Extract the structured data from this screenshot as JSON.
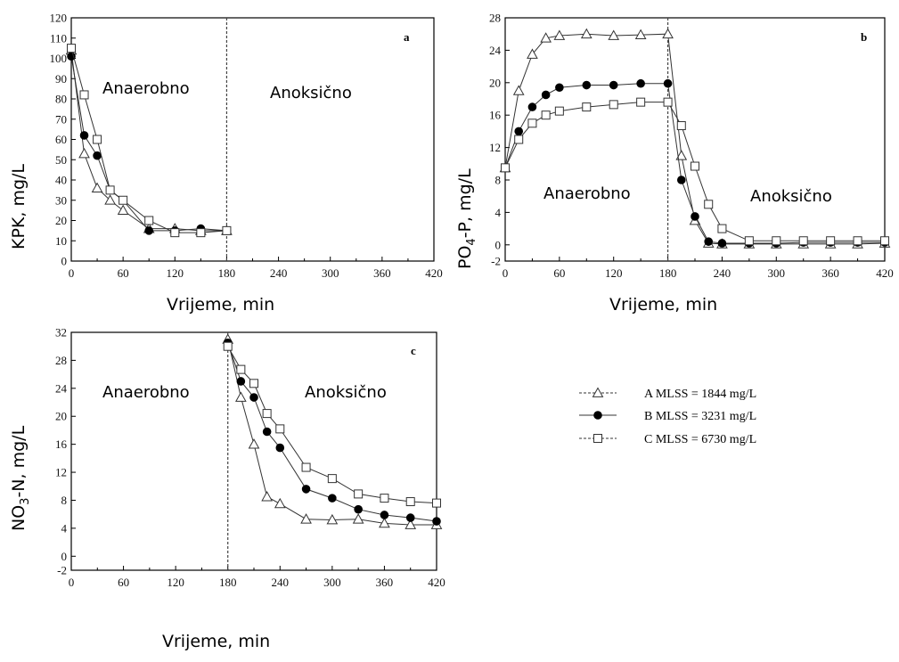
{
  "chart_data": [
    {
      "panel": "a",
      "type": "line",
      "ylabel": "KPK, mg/L",
      "xlabel": "Vrijeme, min",
      "xlim": [
        0,
        420
      ],
      "ylim": [
        0,
        120
      ],
      "xticks": [
        0,
        60,
        120,
        180,
        240,
        300,
        360,
        420
      ],
      "yticks": [
        0,
        10,
        20,
        30,
        40,
        50,
        60,
        70,
        80,
        90,
        100,
        110,
        120
      ],
      "divider_x": 180,
      "regions": [
        "Anaerobno",
        "Anoksično"
      ],
      "series": [
        {
          "key": "A",
          "marker": "triangle",
          "x": [
            0,
            15,
            30,
            45,
            60,
            90,
            120,
            150,
            180
          ],
          "y": [
            104,
            53,
            36,
            30,
            25,
            16,
            16,
            15,
            15
          ]
        },
        {
          "key": "B",
          "marker": "circle",
          "x": [
            0,
            15,
            30,
            45,
            60,
            90,
            120,
            150,
            180
          ],
          "y": [
            101,
            62,
            52,
            35,
            30,
            15,
            15,
            16,
            15
          ]
        },
        {
          "key": "C",
          "marker": "square",
          "x": [
            0,
            15,
            30,
            45,
            60,
            90,
            120,
            150,
            180
          ],
          "y": [
            105,
            82,
            60,
            35,
            30,
            20,
            14,
            14,
            15
          ]
        }
      ]
    },
    {
      "panel": "b",
      "type": "line",
      "ylabel": "PO4-P, mg/L",
      "xlabel": "Vrijeme, min",
      "xlim": [
        0,
        420
      ],
      "ylim": [
        -2,
        28
      ],
      "xticks": [
        0,
        60,
        120,
        180,
        240,
        300,
        360,
        420
      ],
      "yticks": [
        -2,
        0,
        4,
        8,
        12,
        16,
        20,
        24,
        28
      ],
      "divider_x": 180,
      "regions": [
        "Anaerobno",
        "Anoksično"
      ],
      "series": [
        {
          "key": "A",
          "marker": "triangle",
          "x": [
            0,
            15,
            30,
            45,
            60,
            90,
            120,
            150,
            180,
            195,
            210,
            225,
            240,
            270,
            300,
            330,
            360,
            390,
            420
          ],
          "y": [
            9.5,
            19,
            23.5,
            25.5,
            25.8,
            26,
            25.8,
            25.9,
            26,
            11,
            3,
            0.2,
            0.1,
            0.1,
            0.1,
            0.1,
            0.1,
            0.1,
            0.2
          ]
        },
        {
          "key": "B",
          "marker": "circle",
          "x": [
            0,
            15,
            30,
            45,
            60,
            90,
            120,
            150,
            180,
            195,
            210,
            225,
            240,
            270,
            300,
            330,
            360,
            390,
            420
          ],
          "y": [
            9.5,
            14,
            17,
            18.5,
            19.4,
            19.7,
            19.7,
            19.9,
            19.9,
            8,
            3.5,
            0.4,
            0.2,
            0.2,
            0.2,
            0.3,
            0.3,
            0.3,
            0.3
          ]
        },
        {
          "key": "C",
          "marker": "square",
          "x": [
            0,
            15,
            30,
            45,
            60,
            90,
            120,
            150,
            180,
            195,
            210,
            225,
            240,
            270,
            300,
            330,
            360,
            390,
            420
          ],
          "y": [
            9.5,
            13,
            15,
            16,
            16.5,
            17,
            17.3,
            17.6,
            17.6,
            14.7,
            9.7,
            5,
            2,
            0.5,
            0.5,
            0.5,
            0.5,
            0.5,
            0.5
          ]
        }
      ]
    },
    {
      "panel": "c",
      "type": "line",
      "ylabel": "NO3-N, mg/L",
      "xlabel": "Vrijeme, min",
      "xlim": [
        0,
        420
      ],
      "ylim": [
        -2,
        32
      ],
      "xticks": [
        0,
        60,
        120,
        180,
        240,
        300,
        360,
        420
      ],
      "yticks": [
        -2,
        0,
        4,
        8,
        12,
        16,
        20,
        24,
        28,
        32
      ],
      "divider_x": 180,
      "regions": [
        "Anaerobno",
        "Anoksično"
      ],
      "series": [
        {
          "key": "A",
          "marker": "triangle",
          "x": [
            180,
            195,
            210,
            225,
            240,
            270,
            300,
            330,
            360,
            390,
            420
          ],
          "y": [
            31,
            22.7,
            16,
            8.5,
            7.5,
            5.3,
            5.2,
            5.3,
            4.7,
            4.5,
            4.5
          ]
        },
        {
          "key": "B",
          "marker": "circle",
          "x": [
            180,
            195,
            210,
            225,
            240,
            270,
            300,
            330,
            360,
            390,
            420
          ],
          "y": [
            30.5,
            25,
            22.7,
            17.8,
            15.5,
            9.6,
            8.3,
            6.7,
            5.9,
            5.5,
            5.0
          ]
        },
        {
          "key": "C",
          "marker": "square",
          "x": [
            180,
            195,
            210,
            225,
            240,
            270,
            300,
            330,
            360,
            390,
            420
          ],
          "y": [
            30,
            26.7,
            24.7,
            20.4,
            18.2,
            12.7,
            11.1,
            8.9,
            8.3,
            7.8,
            7.6
          ]
        }
      ]
    }
  ],
  "legend": [
    {
      "key": "A",
      "marker": "triangle",
      "text": "A   MLSS = 1844 mg/L"
    },
    {
      "key": "B",
      "marker": "circle",
      "text": "B   MLSS = 3231 mg/L"
    },
    {
      "key": "C",
      "marker": "square",
      "text": "C   MLSS = 6730 mg/L"
    }
  ],
  "colors": {
    "line": "#333333",
    "axis": "#000000",
    "divider": "#444444"
  }
}
